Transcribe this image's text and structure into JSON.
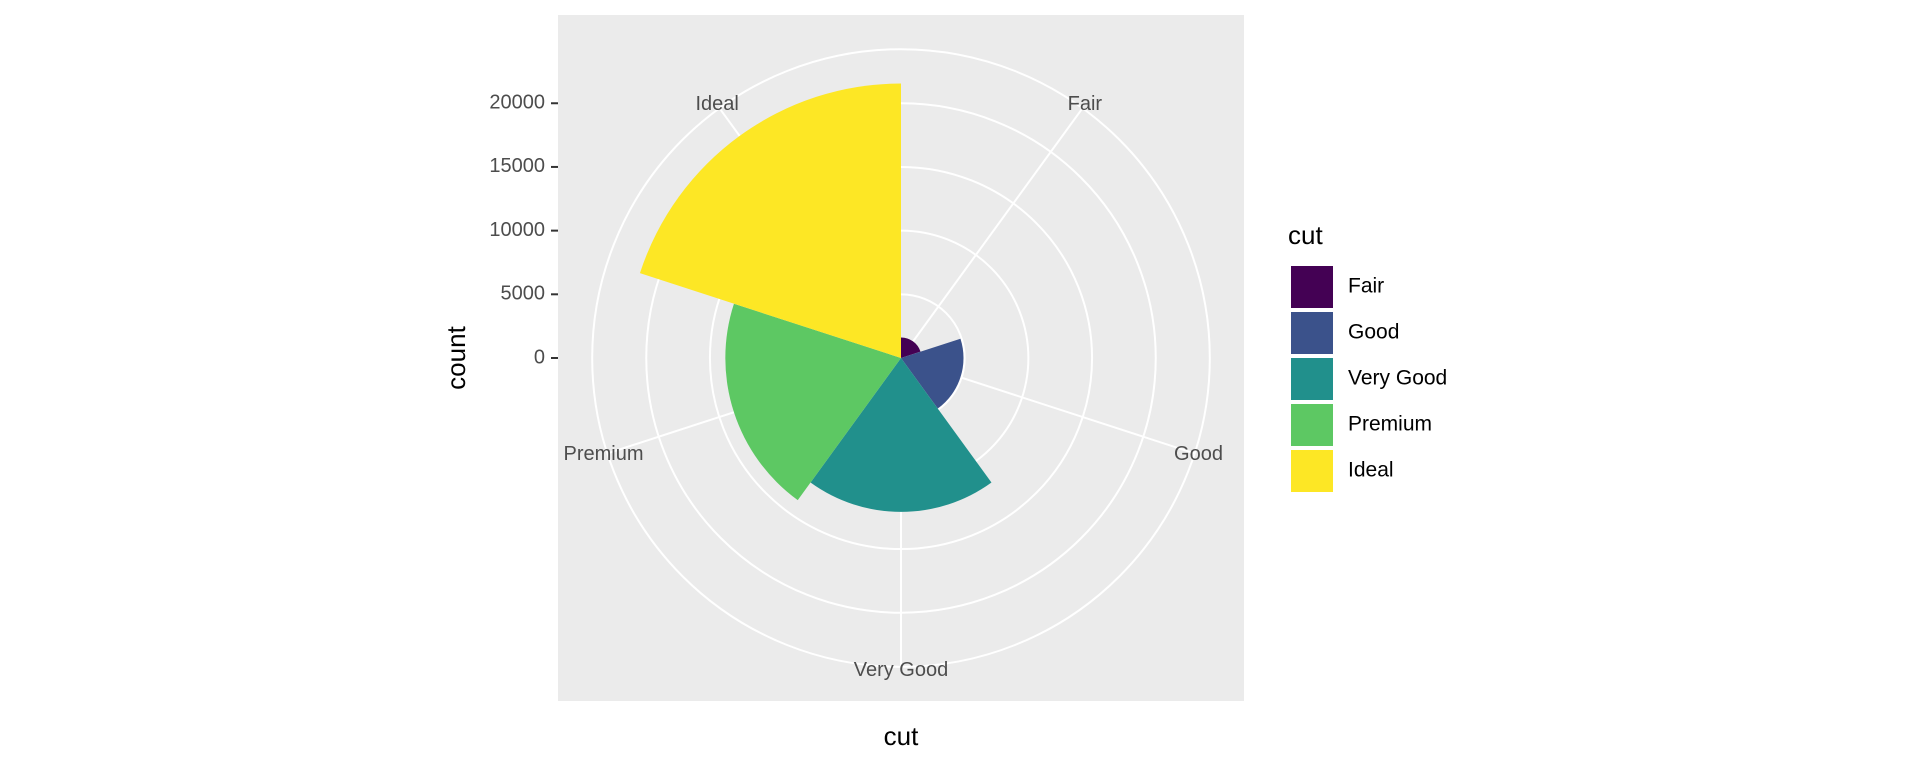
{
  "chart_data": {
    "type": "bar",
    "coord": "polar",
    "x_label": "cut",
    "y_label": "count",
    "legend_title": "cut",
    "categories": [
      "Fair",
      "Good",
      "Very Good",
      "Premium",
      "Ideal"
    ],
    "values": [
      1610,
      4906,
      12082,
      13791,
      21551
    ],
    "colors": [
      "#440154",
      "#3b528b",
      "#21908c",
      "#5dc863",
      "#fde725"
    ],
    "ylim": [
      0,
      21551
    ],
    "yticks": [
      0,
      5000,
      10000,
      15000,
      20000
    ],
    "grid": true,
    "legend": "right"
  }
}
